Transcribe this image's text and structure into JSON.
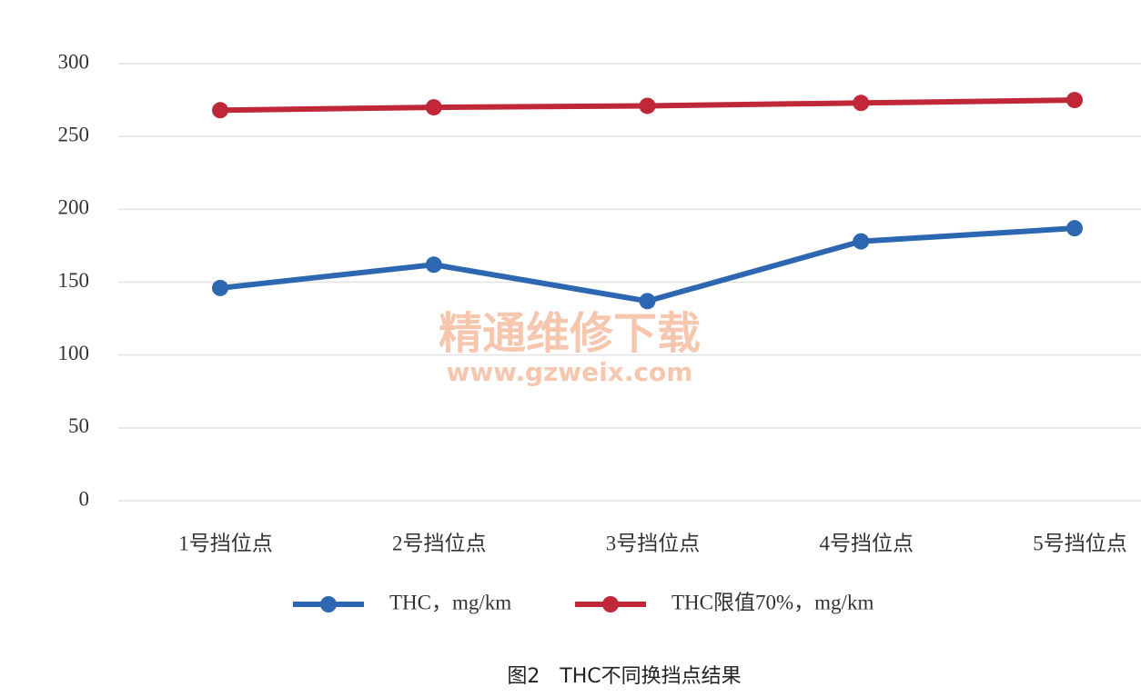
{
  "chart_data": {
    "type": "line",
    "categories": [
      "1号挡位点",
      "2号挡位点",
      "3号挡位点",
      "4号挡位点",
      "5号挡位点"
    ],
    "series": [
      {
        "name": "THC，mg/km",
        "color": "#2e67b1",
        "values": [
          146,
          162,
          137,
          178,
          187
        ]
      },
      {
        "name": "THC限值70%，mg/km",
        "color": "#c0283a",
        "values": [
          268,
          270,
          271,
          273,
          275
        ]
      }
    ],
    "ylim": [
      0,
      300
    ],
    "yticks": [
      0,
      50,
      100,
      150,
      200,
      250,
      300
    ],
    "grid": true,
    "legend": "bottom"
  },
  "caption": "图2　THC不同换挡点结果",
  "watermark": {
    "text": "精通维修下载",
    "url": "www.gzweix.com"
  }
}
